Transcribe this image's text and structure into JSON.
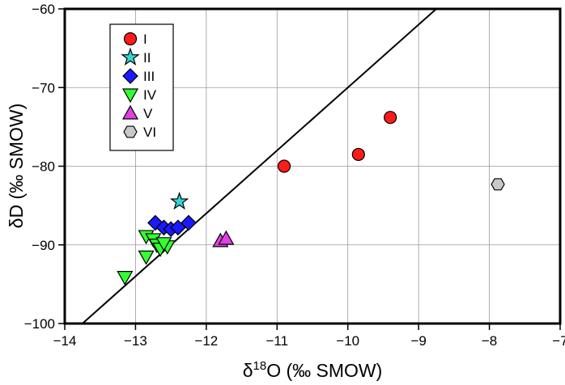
{
  "chart_data": {
    "type": "scatter",
    "title": "",
    "xlabel": {
      "prefix": "δ",
      "sup": "18",
      "main": "O (‰ SMOW)"
    },
    "ylabel": "δD (‰ SMOW)",
    "xlim": [
      -14,
      -7
    ],
    "ylim": [
      -100,
      -60
    ],
    "xticks": [
      -14,
      -13,
      -12,
      -11,
      -10,
      -9,
      -8,
      -7
    ],
    "yticks": [
      -100,
      -90,
      -80,
      -70,
      -60
    ],
    "xtick_labels": [
      "−14",
      "−13",
      "−12",
      "−11",
      "−10",
      "−9",
      "−8",
      "−7"
    ],
    "ytick_labels": [
      "−100",
      "−90",
      "−80",
      "−70",
      "−60"
    ],
    "grid": true,
    "legend_position": "top-left",
    "reference_line": {
      "slope": 8,
      "intercept": 10
    },
    "series": [
      {
        "name": "I",
        "marker": "circle",
        "color": "#ff1a1a",
        "points": [
          {
            "x": -10.9,
            "y": -80.0
          },
          {
            "x": -9.85,
            "y": -78.5
          },
          {
            "x": -9.4,
            "y": -73.8
          }
        ]
      },
      {
        "name": "II",
        "marker": "star",
        "color": "#33d6d6",
        "points": [
          {
            "x": -12.38,
            "y": -84.5
          }
        ]
      },
      {
        "name": "III",
        "marker": "diamond",
        "color": "#1a1aff",
        "points": [
          {
            "x": -12.72,
            "y": -87.2
          },
          {
            "x": -12.6,
            "y": -87.8
          },
          {
            "x": -12.5,
            "y": -88.0
          },
          {
            "x": -12.4,
            "y": -87.8
          },
          {
            "x": -12.25,
            "y": -87.2
          }
        ]
      },
      {
        "name": "IV",
        "marker": "triangle-down",
        "color": "#33ff33",
        "points": [
          {
            "x": -13.15,
            "y": -94.1
          },
          {
            "x": -12.85,
            "y": -91.5
          },
          {
            "x": -12.85,
            "y": -88.9
          },
          {
            "x": -12.75,
            "y": -89.3
          },
          {
            "x": -12.7,
            "y": -90.0
          },
          {
            "x": -12.65,
            "y": -90.5
          },
          {
            "x": -12.55,
            "y": -90.2
          },
          {
            "x": -12.6,
            "y": -89.8
          }
        ]
      },
      {
        "name": "V",
        "marker": "triangle-up",
        "color": "#e040e0",
        "points": [
          {
            "x": -11.8,
            "y": -89.5
          },
          {
            "x": -11.72,
            "y": -89.2
          }
        ]
      },
      {
        "name": "VI",
        "marker": "hexagon",
        "color": "#c8c8c8",
        "points": [
          {
            "x": -7.88,
            "y": -82.3
          }
        ]
      }
    ]
  }
}
